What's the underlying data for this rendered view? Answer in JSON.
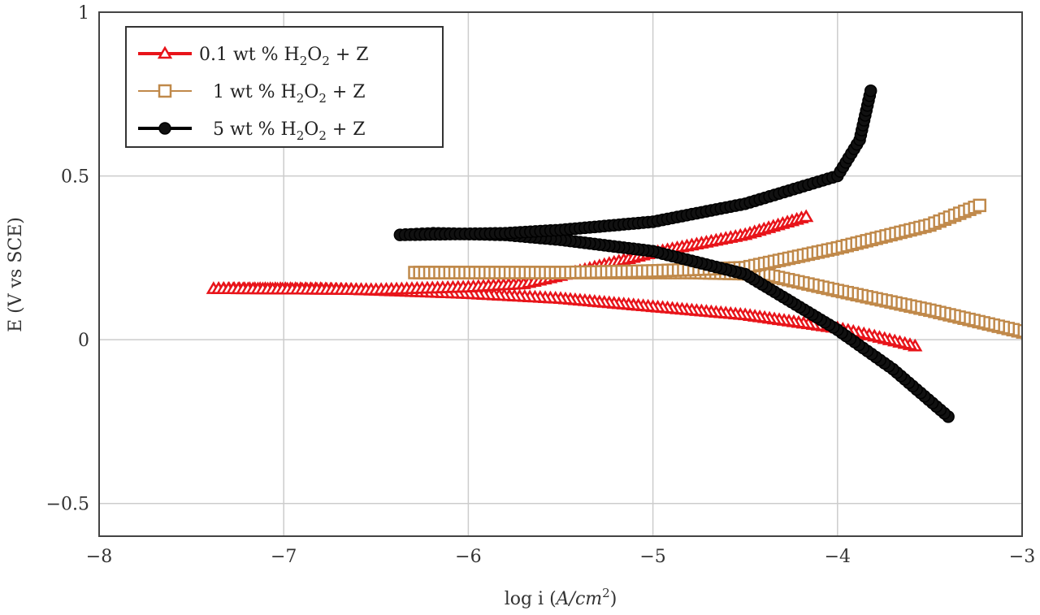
{
  "chart_data": {
    "type": "line",
    "title": "",
    "xlabel": "log i (A/cm²)",
    "xlabel_parts": {
      "prefix": "log i (",
      "italic": "A/cm",
      "sup": "2",
      "suffix": ")"
    },
    "ylabel": "E (V vs SCE)",
    "xlim": [
      -8,
      -3
    ],
    "ylim": [
      -0.6,
      1
    ],
    "xticks": [
      -8,
      -7,
      -6,
      -5,
      -4,
      -3
    ],
    "xtick_labels": [
      "−8",
      "−7",
      "−6",
      "−5",
      "−4",
      "−3"
    ],
    "yticks": [
      -0.5,
      0,
      0.5,
      1
    ],
    "ytick_labels": [
      "−0.5",
      "0",
      "0.5",
      "1"
    ],
    "grid": true,
    "legend_position": "top-left",
    "series": [
      {
        "name": "0.1 wt % H2O2 + Z",
        "label_parts": {
          "a": "0.1 wt % H",
          "s1": "2",
          "b": "O",
          "s2": "2",
          "c": " + Z"
        },
        "color": "#e8141a",
        "marker": "triangle",
        "points": [
          [
            -3.58,
            -0.02
          ],
          [
            -3.8,
            0.01
          ],
          [
            -4.0,
            0.035
          ],
          [
            -4.5,
            0.075
          ],
          [
            -5.0,
            0.1
          ],
          [
            -5.5,
            0.125
          ],
          [
            -6.0,
            0.14
          ],
          [
            -6.5,
            0.15
          ],
          [
            -6.8,
            0.155
          ],
          [
            -7.1,
            0.155
          ],
          [
            -7.38,
            0.155
          ],
          [
            -6.5,
            0.152
          ],
          [
            -6.0,
            0.16
          ],
          [
            -5.7,
            0.17
          ],
          [
            -5.5,
            0.195
          ],
          [
            -5.0,
            0.265
          ],
          [
            -4.5,
            0.32
          ],
          [
            -4.17,
            0.375
          ]
        ]
      },
      {
        "name": "1 wt % H2O2 + Z",
        "label_parts": {
          "a": "1 wt % H",
          "s1": "2",
          "b": "O",
          "s2": "2",
          "c": " + Z"
        },
        "color": "#c0894a",
        "marker": "square",
        "points": [
          [
            -2.97,
            0.02
          ],
          [
            -3.5,
            0.09
          ],
          [
            -4.0,
            0.15
          ],
          [
            -4.4,
            0.2
          ],
          [
            -4.8,
            0.205
          ],
          [
            -5.2,
            0.205
          ],
          [
            -5.6,
            0.205
          ],
          [
            -5.95,
            0.205
          ],
          [
            -6.29,
            0.205
          ],
          [
            -5.5,
            0.205
          ],
          [
            -5.0,
            0.21
          ],
          [
            -4.5,
            0.22
          ],
          [
            -4.0,
            0.28
          ],
          [
            -3.5,
            0.35
          ],
          [
            -3.23,
            0.41
          ]
        ]
      },
      {
        "name": "5 wt % H2O2 + Z",
        "label_parts": {
          "a": "5 wt % H",
          "s1": "2",
          "b": "O",
          "s2": "2",
          "c": " + Z"
        },
        "color": "#000000",
        "marker": "circle",
        "points": [
          [
            -3.4,
            -0.235
          ],
          [
            -3.7,
            -0.09
          ],
          [
            -4.0,
            0.03
          ],
          [
            -4.5,
            0.2
          ],
          [
            -5.0,
            0.27
          ],
          [
            -5.5,
            0.305
          ],
          [
            -5.8,
            0.32
          ],
          [
            -6.19,
            0.325
          ],
          [
            -6.37,
            0.32
          ],
          [
            -5.8,
            0.325
          ],
          [
            -5.5,
            0.335
          ],
          [
            -5.0,
            0.36
          ],
          [
            -4.5,
            0.415
          ],
          [
            -4.0,
            0.5
          ],
          [
            -3.88,
            0.61
          ],
          [
            -3.82,
            0.76
          ]
        ]
      }
    ]
  }
}
